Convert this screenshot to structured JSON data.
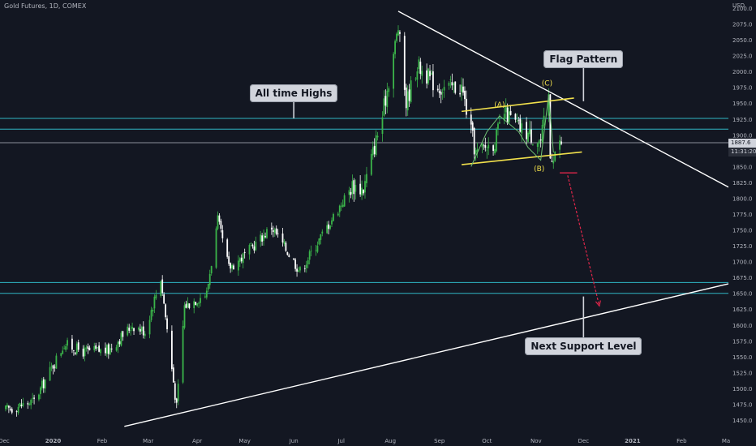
{
  "header": {
    "symbol_title": "Gold Futures, 1D, COMEX",
    "currency": "USD"
  },
  "chart_data": {
    "type": "candlestick",
    "price_axis": {
      "min": 1440,
      "max": 2115,
      "ticks": [
        2100.0,
        2075.0,
        2050.0,
        2025.0,
        2000.0,
        1975.0,
        1950.0,
        1925.0,
        1900.0,
        1875.0,
        1850.0,
        1825.0,
        1800.0,
        1775.0,
        1750.0,
        1725.0,
        1700.0,
        1675.0,
        1650.0,
        1625.0,
        1600.0,
        1575.0,
        1550.0,
        1525.0,
        1500.0,
        1475.0,
        1450.0
      ]
    },
    "time_axis": {
      "labels": [
        {
          "label": "Dec",
          "date": "2019-12-01"
        },
        {
          "label": "2020",
          "date": "2020-01-01"
        },
        {
          "label": "Feb",
          "date": "2020-02-01"
        },
        {
          "label": "Mar",
          "date": "2020-03-01"
        },
        {
          "label": "Apr",
          "date": "2020-04-01"
        },
        {
          "label": "May",
          "date": "2020-05-01"
        },
        {
          "label": "Jun",
          "date": "2020-06-01"
        },
        {
          "label": "Jul",
          "date": "2020-07-01"
        },
        {
          "label": "Aug",
          "date": "2020-08-01"
        },
        {
          "label": "Sep",
          "date": "2020-09-01"
        },
        {
          "label": "Oct",
          "date": "2020-10-01"
        },
        {
          "label": "Nov",
          "date": "2020-11-01"
        },
        {
          "label": "Dec",
          "date": "2020-12-01"
        },
        {
          "label": "2021",
          "date": "2021-01-01"
        },
        {
          "label": "Feb",
          "date": "2021-02-01"
        },
        {
          "label": "Ma",
          "date": "2021-03-01"
        }
      ]
    },
    "price_anchors": [
      {
        "date": "2019-12-01",
        "close": 1465
      },
      {
        "date": "2019-12-20",
        "close": 1480
      },
      {
        "date": "2020-01-08",
        "close": 1570
      },
      {
        "date": "2020-01-20",
        "close": 1558
      },
      {
        "date": "2020-02-05",
        "close": 1560
      },
      {
        "date": "2020-02-20",
        "close": 1600
      },
      {
        "date": "2020-02-28",
        "close": 1590
      },
      {
        "date": "2020-03-09",
        "close": 1675
      },
      {
        "date": "2020-03-19",
        "close": 1470
      },
      {
        "date": "2020-03-24",
        "close": 1630
      },
      {
        "date": "2020-04-07",
        "close": 1650
      },
      {
        "date": "2020-04-14",
        "close": 1765
      },
      {
        "date": "2020-04-21",
        "close": 1690
      },
      {
        "date": "2020-05-01",
        "close": 1710
      },
      {
        "date": "2020-05-18",
        "close": 1755
      },
      {
        "date": "2020-06-05",
        "close": 1685
      },
      {
        "date": "2020-06-22",
        "close": 1755
      },
      {
        "date": "2020-07-08",
        "close": 1820
      },
      {
        "date": "2020-07-15",
        "close": 1815
      },
      {
        "date": "2020-07-27",
        "close": 1930
      },
      {
        "date": "2020-08-06",
        "close": 2070
      },
      {
        "date": "2020-08-11",
        "close": 1950
      },
      {
        "date": "2020-08-18",
        "close": 2010
      },
      {
        "date": "2020-08-31",
        "close": 1975
      },
      {
        "date": "2020-09-15",
        "close": 1975
      },
      {
        "date": "2020-09-24",
        "close": 1870
      },
      {
        "date": "2020-10-06",
        "close": 1890
      },
      {
        "date": "2020-10-12",
        "close": 1935
      },
      {
        "date": "2020-10-22",
        "close": 1910
      },
      {
        "date": "2020-11-04",
        "close": 1890
      },
      {
        "date": "2020-11-09",
        "close": 1960
      },
      {
        "date": "2020-11-10",
        "close": 1865
      },
      {
        "date": "2020-11-17",
        "close": 1887.6
      }
    ],
    "horizontal_levels": [
      {
        "price": 1926,
        "color": "#2fb7c4"
      },
      {
        "price": 1909,
        "color": "#2fb7c4"
      },
      {
        "price": 1887.6,
        "color": "#8b8f99"
      },
      {
        "price": 1667,
        "color": "#2fb7c4"
      },
      {
        "price": 1650,
        "color": "#2fb7c4"
      }
    ],
    "trendlines": [
      {
        "from": {
          "date": "2020-08-06",
          "price": 2095
        },
        "to": {
          "date": "2021-03-06",
          "price": 1813
        },
        "color": "#ffffff"
      },
      {
        "from": {
          "date": "2020-02-15",
          "price": 1440
        },
        "to": {
          "date": "2021-03-06",
          "price": 1667
        },
        "color": "#ffffff"
      }
    ],
    "flag_channel": [
      {
        "from": {
          "date": "2020-09-15",
          "price": 1937
        },
        "to": {
          "date": "2020-11-25",
          "price": 1958
        },
        "color": "#f2e14c"
      },
      {
        "from": {
          "date": "2020-09-15",
          "price": 1853
        },
        "to": {
          "date": "2020-11-30",
          "price": 1873
        },
        "color": "#f2e14c"
      }
    ],
    "wave_path": [
      {
        "date": "2020-09-21",
        "price": 1850
      },
      {
        "date": "2020-10-01",
        "price": 1905
      },
      {
        "date": "2020-10-09",
        "price": 1930
      },
      {
        "date": "2020-10-21",
        "price": 1905
      },
      {
        "date": "2020-10-27",
        "price": 1880
      },
      {
        "date": "2020-11-04",
        "price": 1860
      },
      {
        "date": "2020-11-09",
        "price": 1963
      },
      {
        "date": "2020-11-12",
        "price": 1872
      }
    ],
    "wave_labels": [
      {
        "text": "(A)",
        "date": "2020-10-09",
        "price": 1944
      },
      {
        "text": "(B)",
        "date": "2020-11-03",
        "price": 1843
      },
      {
        "text": "(C)",
        "date": "2020-11-08",
        "price": 1978
      }
    ],
    "projection": {
      "color": "#e0264a",
      "target_line": {
        "from": "2020-11-16",
        "to": "2020-11-27",
        "price": 1840
      },
      "arrow": {
        "from": {
          "date": "2020-11-21",
          "price": 1836
        },
        "to": {
          "date": "2020-12-11",
          "price": 1630
        }
      }
    },
    "callouts": [
      {
        "text": "All time Highs",
        "date": "2020-06-01",
        "price": 1966,
        "pointer": {
          "date": "2020-06-01",
          "price": 1926
        }
      },
      {
        "text": "Flag Pattern",
        "date": "2020-12-01",
        "price": 2020,
        "pointer": {
          "date": "2020-12-01",
          "price": 1953
        }
      },
      {
        "text": "Next Support Level",
        "date": "2020-12-01",
        "price": 1567,
        "pointer": {
          "date": "2020-12-01",
          "price": 1645
        }
      }
    ],
    "price_tags": [
      {
        "text": "1887.6",
        "price": 1887.6,
        "bg": "#d1d4dc",
        "fg": "#131722"
      },
      {
        "text": "11:31:20",
        "price": 1873,
        "bg": "#2a2e39",
        "fg": "#d1d4dc"
      }
    ],
    "colors": {
      "up": "#26a69a",
      "up_fill": "#3bb54a",
      "down": "#ffffff",
      "axis_text": "#b2b5be",
      "background": "#131722"
    }
  }
}
